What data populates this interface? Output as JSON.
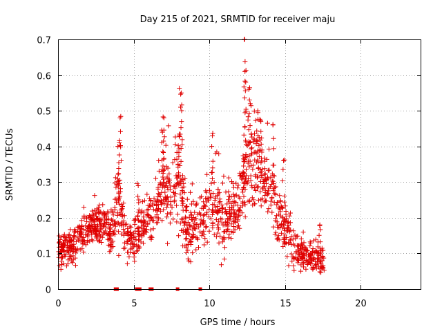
{
  "chart_data": {
    "type": "scatter",
    "title": "Day 215 of 2021, SRMTID for receiver maju",
    "xlabel": "GPS time / hours",
    "ylabel": "SRMTID / TECUs",
    "xlim": [
      0,
      24
    ],
    "ylim": [
      0,
      0.7
    ],
    "xticks": [
      "0",
      "5",
      "10",
      "15",
      "20"
    ],
    "yticks": [
      "0",
      "0.1",
      "0.2",
      "0.3",
      "0.4",
      "0.5",
      "0.6",
      "0.7"
    ],
    "grid": true,
    "marker": "+",
    "color": "#e00000",
    "series": [
      {
        "name": "SRMTID",
        "profile": [
          {
            "x": 0.0,
            "y": 0.1,
            "spread": 0.035
          },
          {
            "x": 1.0,
            "y": 0.12,
            "spread": 0.045
          },
          {
            "x": 2.0,
            "y": 0.17,
            "spread": 0.045
          },
          {
            "x": 3.0,
            "y": 0.19,
            "spread": 0.045
          },
          {
            "x": 3.5,
            "y": 0.15,
            "spread": 0.05
          },
          {
            "x": 4.0,
            "y": 0.25,
            "spread": 0.12
          },
          {
            "x": 4.5,
            "y": 0.14,
            "spread": 0.05
          },
          {
            "x": 5.0,
            "y": 0.13,
            "spread": 0.05
          },
          {
            "x": 5.5,
            "y": 0.17,
            "spread": 0.05
          },
          {
            "x": 6.0,
            "y": 0.19,
            "spread": 0.06
          },
          {
            "x": 6.5,
            "y": 0.24,
            "spread": 0.07
          },
          {
            "x": 7.0,
            "y": 0.3,
            "spread": 0.09
          },
          {
            "x": 7.5,
            "y": 0.25,
            "spread": 0.08
          },
          {
            "x": 8.0,
            "y": 0.3,
            "spread": 0.12
          },
          {
            "x": 8.5,
            "y": 0.15,
            "spread": 0.07
          },
          {
            "x": 9.0,
            "y": 0.18,
            "spread": 0.07
          },
          {
            "x": 9.5,
            "y": 0.2,
            "spread": 0.07
          },
          {
            "x": 10.0,
            "y": 0.22,
            "spread": 0.08
          },
          {
            "x": 10.5,
            "y": 0.25,
            "spread": 0.09
          },
          {
            "x": 11.0,
            "y": 0.18,
            "spread": 0.08
          },
          {
            "x": 11.5,
            "y": 0.2,
            "spread": 0.08
          },
          {
            "x": 12.0,
            "y": 0.24,
            "spread": 0.08
          },
          {
            "x": 12.5,
            "y": 0.34,
            "spread": 0.13
          },
          {
            "x": 13.0,
            "y": 0.36,
            "spread": 0.12
          },
          {
            "x": 13.5,
            "y": 0.3,
            "spread": 0.1
          },
          {
            "x": 14.0,
            "y": 0.28,
            "spread": 0.09
          },
          {
            "x": 14.5,
            "y": 0.2,
            "spread": 0.07
          },
          {
            "x": 15.0,
            "y": 0.17,
            "spread": 0.06
          },
          {
            "x": 15.5,
            "y": 0.12,
            "spread": 0.05
          },
          {
            "x": 16.0,
            "y": 0.1,
            "spread": 0.04
          },
          {
            "x": 16.5,
            "y": 0.09,
            "spread": 0.035
          },
          {
            "x": 17.0,
            "y": 0.09,
            "spread": 0.035
          },
          {
            "x": 17.6,
            "y": 0.07,
            "spread": 0.03
          }
        ],
        "peaks": [
          {
            "x": 4.1,
            "y": 0.48
          },
          {
            "x": 4.05,
            "y": 0.41
          },
          {
            "x": 7.0,
            "y": 0.48
          },
          {
            "x": 6.9,
            "y": 0.44
          },
          {
            "x": 8.15,
            "y": 0.55
          },
          {
            "x": 8.1,
            "y": 0.51
          },
          {
            "x": 8.0,
            "y": 0.43
          },
          {
            "x": 10.2,
            "y": 0.43
          },
          {
            "x": 12.3,
            "y": 0.7
          },
          {
            "x": 12.35,
            "y": 0.61
          },
          {
            "x": 12.4,
            "y": 0.58
          },
          {
            "x": 12.6,
            "y": 0.56
          },
          {
            "x": 12.7,
            "y": 0.52
          },
          {
            "x": 13.2,
            "y": 0.5
          },
          {
            "x": 13.4,
            "y": 0.47
          },
          {
            "x": 14.2,
            "y": 0.46
          },
          {
            "x": 5.3,
            "y": 0.29
          },
          {
            "x": 14.9,
            "y": 0.36
          },
          {
            "x": 17.3,
            "y": 0.18
          }
        ],
        "zero_markers_x": [
          3.8,
          3.9,
          5.2,
          5.3,
          5.4,
          6.1,
          6.2,
          7.9,
          9.4
        ]
      }
    ]
  }
}
